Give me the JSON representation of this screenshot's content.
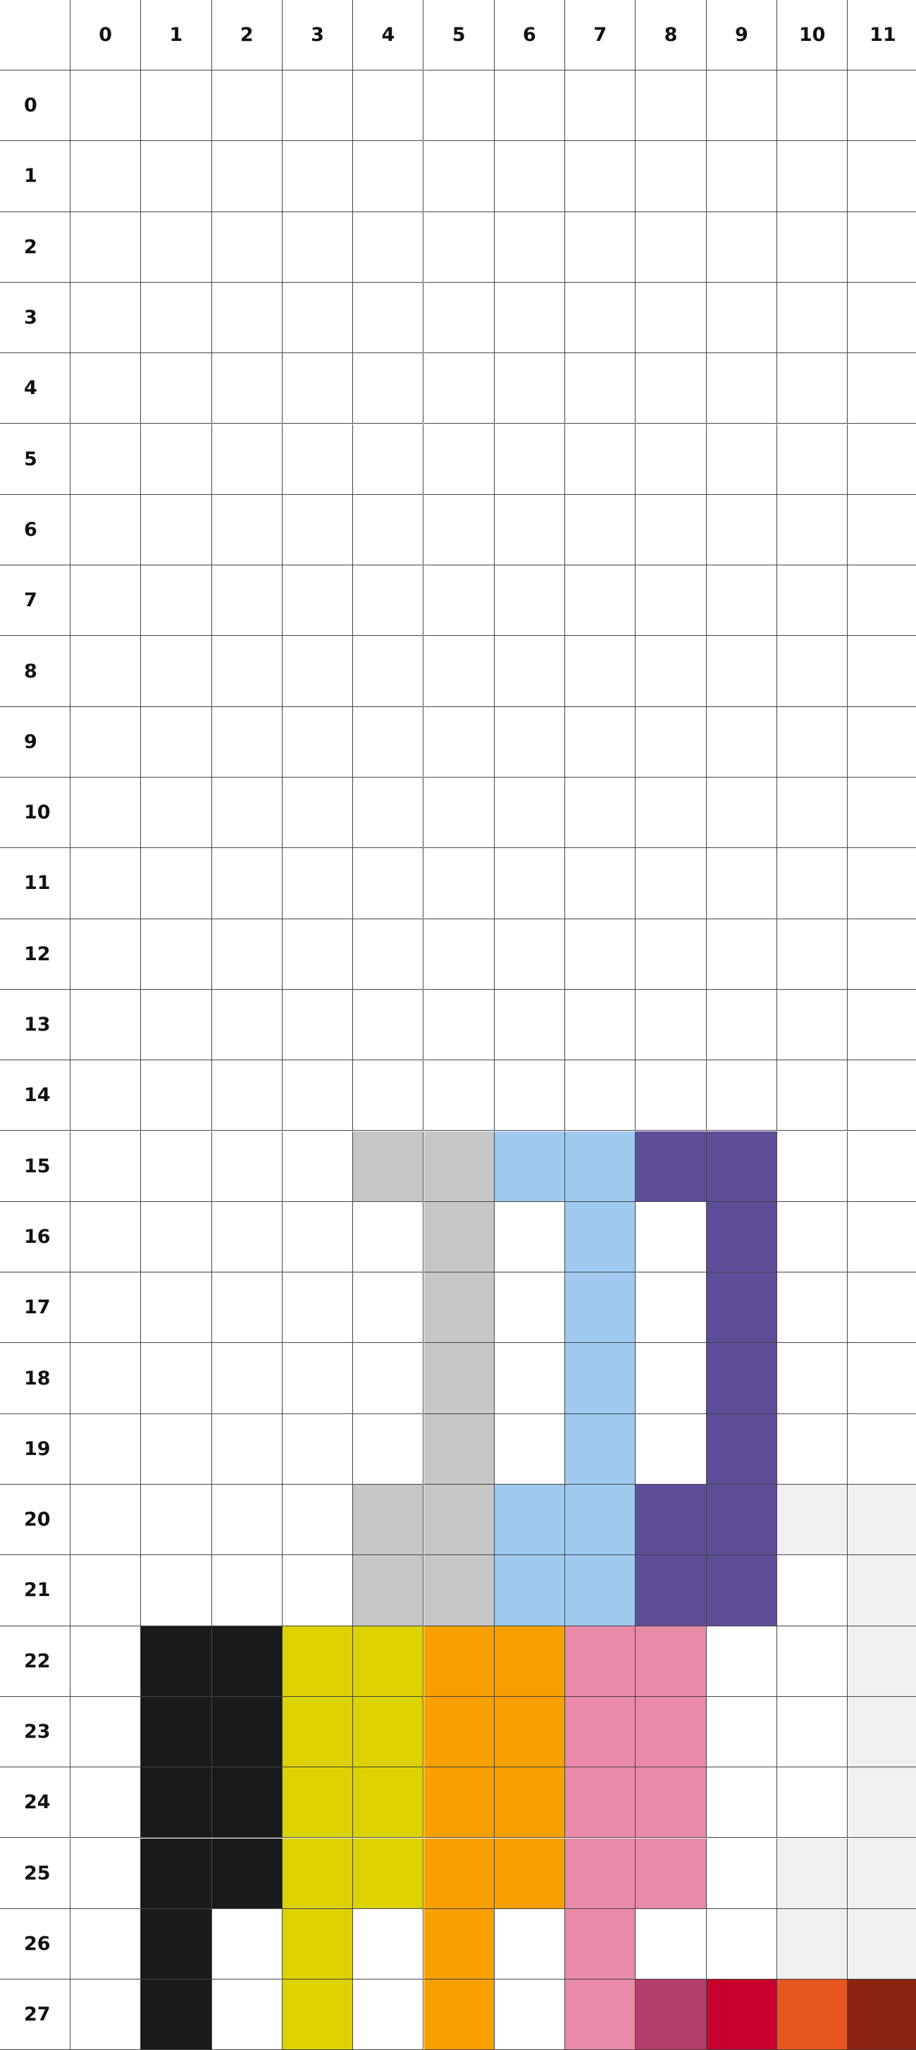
{
  "board": {
    "columns": [
      "0",
      "1",
      "2",
      "3",
      "4",
      "5",
      "6",
      "7",
      "8",
      "9",
      "10",
      "11"
    ],
    "rows": [
      "0",
      "1",
      "2",
      "3",
      "4",
      "5",
      "6",
      "7",
      "8",
      "9",
      "10",
      "11",
      "12",
      "13",
      "14",
      "15",
      "16",
      "17",
      "18",
      "19",
      "20",
      "21",
      "22",
      "23",
      "24",
      "25",
      "26",
      "27"
    ],
    "palette": {
      "W": "#ffffff",
      "G": "#c6c6c6",
      "B": "#9fc9ef",
      "P": "#5e4d99",
      "L": "#f0f0f2",
      "K": "#1a1a1a",
      "Y": "#dcd200",
      "O": "#f8a000",
      "N": "#e88aa8",
      "M": "#b33d6b",
      "R": "#c8002f",
      "E": "#e6561f",
      "D": "#8a2411"
    },
    "cells": [
      "WWWWWWWWWWWW",
      "WWWWWWWWWWWW",
      "WWWWWWWWWWWW",
      "WWWWWWWWWWWW",
      "WWWWWWWWWWWW",
      "WWWWWWWWWWWW",
      "WWWWWWWWWWWW",
      "WWWWWWWWWWWW",
      "WWWWWWWWWWWW",
      "WWWWWWWWWWWW",
      "WWWWWWWWWWWW",
      "WWWWWWWWWWWW",
      "WWWWWWWWWWWW",
      "WWWWWWWWWWWW",
      "WWWWWWWWWWWW",
      "WWWWGGBBPPWW",
      "WWWWWGWBWPWW",
      "WWWWWGWBWPWW",
      "WWWWWGWBWPWW",
      "WWWWWGWBWPWW",
      "WWWWGGBBPPLL",
      "WWWWGGBBPPWL",
      "WKKYYOONNWWL",
      "WKKYYOONNWWL",
      "WKKYYOONNWWL",
      "WKKYYOONNWLL",
      "WKWYWOWNWWLL",
      "WKWYWOWNMRED"
    ]
  }
}
